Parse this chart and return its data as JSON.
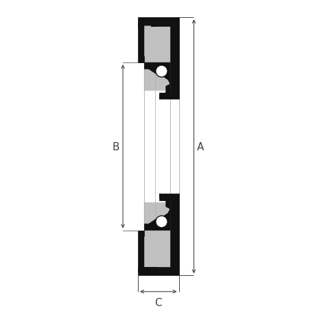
{
  "bg_color": "#ffffff",
  "fill_black": "#111111",
  "fill_gray": "#c0c0c0",
  "fill_white": "#ffffff",
  "dim_color": "#444444",
  "fig_width": 4.6,
  "fig_height": 4.6,
  "dpi": 100,
  "label_A": "A",
  "label_B": "B",
  "label_C": "C"
}
